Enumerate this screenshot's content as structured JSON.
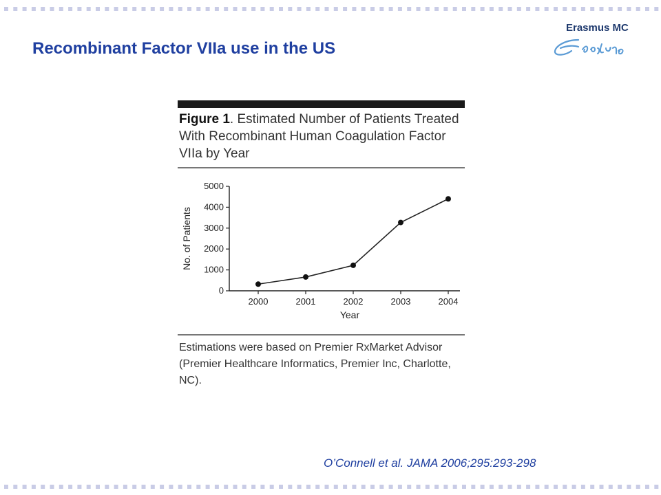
{
  "slide": {
    "title": "Recombinant Factor VIIa use in the US",
    "citation": "O’Connell et al. JAMA 2006;295:293-298"
  },
  "logo": {
    "name": "Erasmus MC",
    "signature": "Erafmus"
  },
  "figure": {
    "label": "Figure 1",
    "caption_rest": ". Estimated Number of Patients Treated With Recombinant Human Coagulation Factor VIIa by Year",
    "note": "Estimations were based on Premier RxMarket Advisor (Premier Healthcare Informatics, Premier Inc, Charlotte, NC)."
  },
  "chart_data": {
    "type": "line",
    "title": "Estimated Number of Patients Treated With Recombinant Human Coagulation Factor VIIa by Year",
    "xlabel": "Year",
    "ylabel": "No. of Patients",
    "x": [
      "2000",
      "2001",
      "2002",
      "2003",
      "2004"
    ],
    "series": [
      {
        "values": [
          320,
          660,
          1220,
          3270,
          4400
        ]
      }
    ],
    "ylim": [
      0,
      5000
    ],
    "yticks": [
      0,
      1000,
      2000,
      3000,
      4000,
      5000
    ],
    "grid": false,
    "legend": "none"
  },
  "colors": {
    "title": "#1f3fa0",
    "dots": "#c9cce6",
    "figure_bar": "#1a1a1a",
    "logo": "#1f3a6e"
  }
}
